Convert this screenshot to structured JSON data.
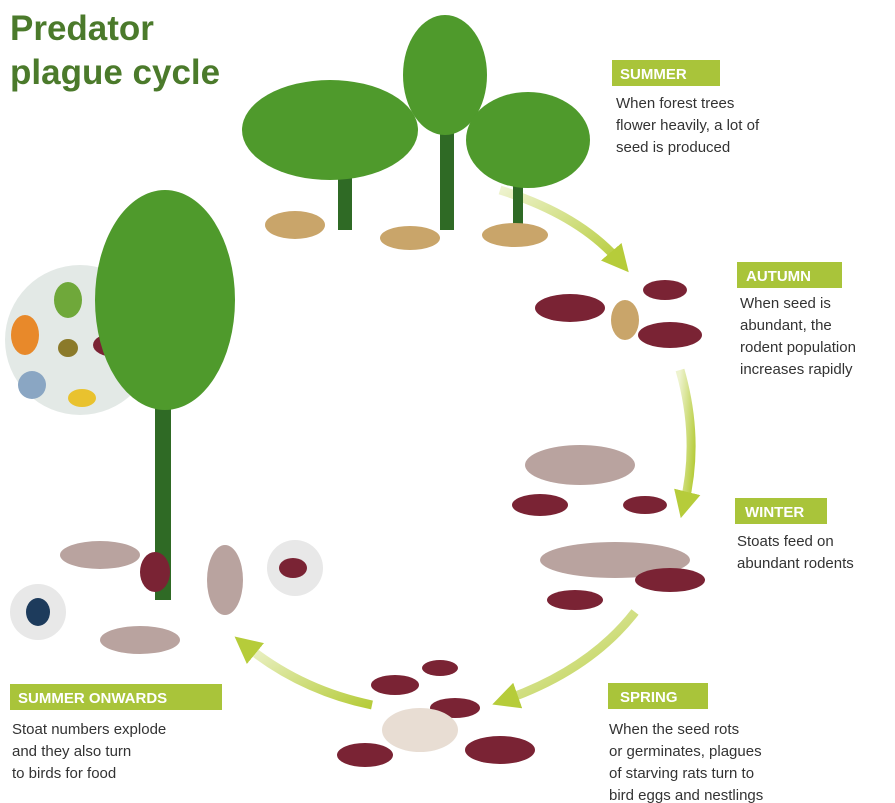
{
  "title": {
    "lines": [
      "Predator",
      "plague cycle"
    ]
  },
  "stages": [
    {
      "label": "SUMMER",
      "description": [
        "When forest trees",
        "flower heavily, a lot of",
        "seed is produced"
      ]
    },
    {
      "label": "AUTUMN",
      "description": [
        "When seed is",
        "abundant, the",
        "rodent population",
        "increases rapidly"
      ]
    },
    {
      "label": "WINTER",
      "description": [
        "Stoats feed on",
        "abundant rodents"
      ]
    },
    {
      "label": "SPRING",
      "description": [
        "When the seed rots",
        "or germinates, plagues",
        "of starving rats turn to",
        "bird eggs and nestlings"
      ]
    },
    {
      "label": "SUMMER ONWARDS",
      "description": [
        "Stoat numbers explode",
        "and they also turn",
        "to birds for food"
      ]
    }
  ]
}
